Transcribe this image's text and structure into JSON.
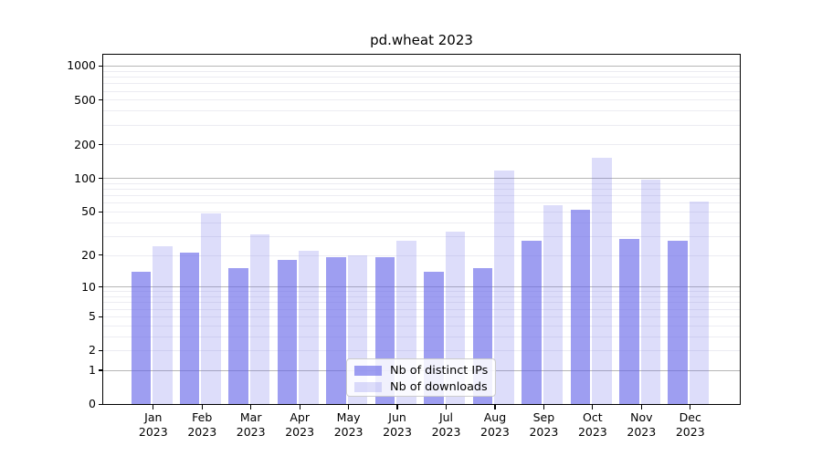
{
  "title": "pd.wheat 2023",
  "chart_data": {
    "type": "bar",
    "title": "pd.wheat 2023",
    "categories": [
      "Jan",
      "Feb",
      "Mar",
      "Apr",
      "May",
      "Jun",
      "Jul",
      "Aug",
      "Sep",
      "Oct",
      "Nov",
      "Dec"
    ],
    "year_label": "2023",
    "series": [
      {
        "name": "Nb of distinct IPs",
        "values": [
          14,
          21,
          15,
          18,
          19,
          19,
          14,
          15,
          27,
          52,
          28,
          27
        ]
      },
      {
        "name": "Nb of downloads",
        "values": [
          24,
          48,
          31,
          22,
          20,
          27,
          33,
          117,
          57,
          153,
          97,
          61
        ]
      }
    ],
    "y_axis": {
      "scale": "log10(1+v)",
      "tick_labels": [
        "0",
        "1",
        "2",
        "5",
        "10",
        "20",
        "50",
        "100",
        "200",
        "500",
        "1000"
      ],
      "tick_values": [
        0,
        1,
        2,
        5,
        10,
        20,
        50,
        100,
        200,
        500,
        1000
      ],
      "major_grid_values": [
        1,
        10,
        100,
        1000
      ],
      "minor_grid_values": [
        2,
        3,
        4,
        5,
        6,
        7,
        8,
        9,
        20,
        30,
        40,
        50,
        60,
        70,
        80,
        90,
        200,
        300,
        400,
        500,
        600,
        700,
        800,
        900
      ],
      "ylim": [
        0,
        1250
      ]
    },
    "xlabel": "",
    "ylabel": "",
    "grid": true,
    "legend_position": "lower center"
  },
  "legend": {
    "items": [
      {
        "label": "Nb of distinct IPs"
      },
      {
        "label": "Nb of downloads"
      }
    ]
  },
  "colors": {
    "ips_bar": "rgba(98,98,232,0.62)",
    "downloads_bar": "rgba(98,98,232,0.22)",
    "major_grid": "#b6b6b6",
    "minor_grid": "#ececf2",
    "spine": "#000000",
    "background": "#ffffff",
    "legend_bg": "rgba(255,255,255,0.85)",
    "legend_border": "#cccccc",
    "text": "#000000"
  }
}
